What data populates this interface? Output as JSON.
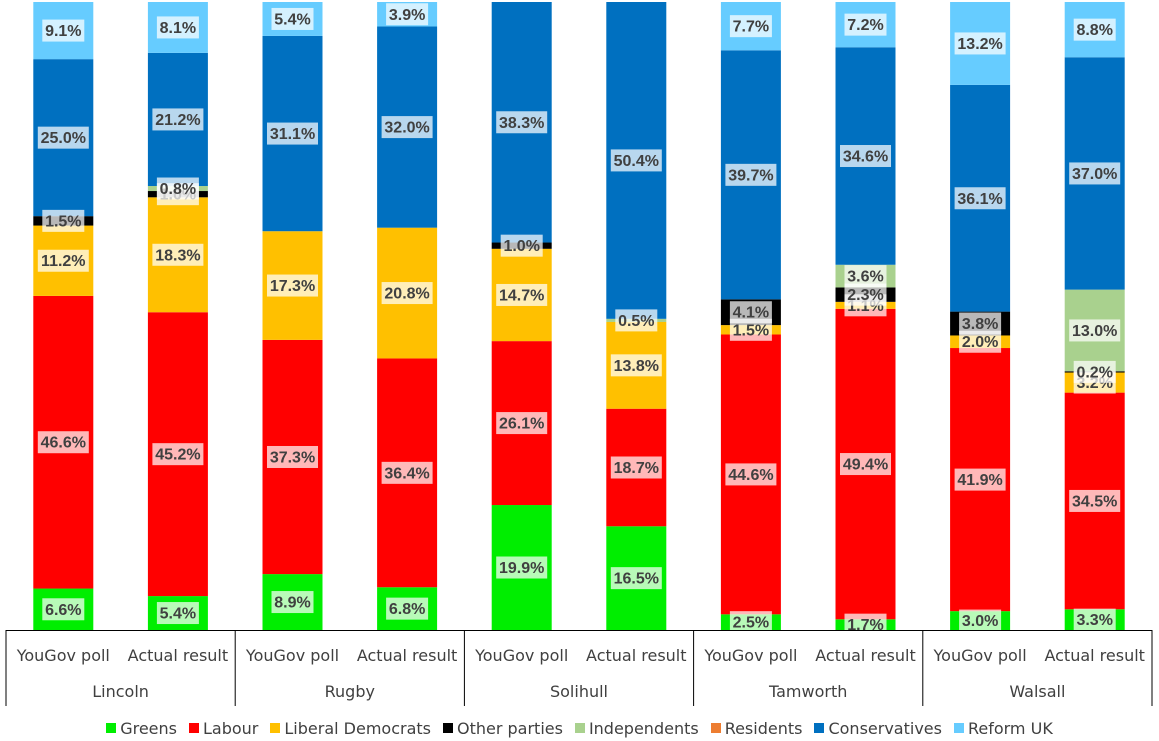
{
  "chart_data": {
    "type": "bar",
    "stacked": true,
    "percent_stacked": true,
    "bar_labels": [
      "YouGov poll",
      "Actual result"
    ],
    "groups": [
      "Lincoln",
      "Rugby",
      "Solihull",
      "Tamworth",
      "Walsall"
    ],
    "categories": [
      "YouGov poll",
      "Actual result",
      "YouGov poll",
      "Actual result",
      "YouGov poll",
      "Actual result",
      "YouGov poll",
      "Actual result",
      "YouGov poll",
      "Actual result"
    ],
    "series": [
      {
        "name": "Greens",
        "color": "#00ee00",
        "values": [
          6.6,
          5.4,
          8.9,
          6.8,
          19.9,
          16.5,
          2.5,
          1.7,
          3.0,
          3.3
        ]
      },
      {
        "name": "Labour",
        "color": "#ff0000",
        "values": [
          46.6,
          45.2,
          37.3,
          36.4,
          26.1,
          18.7,
          44.6,
          49.4,
          41.9,
          34.5
        ]
      },
      {
        "name": "Liberal Democrats",
        "color": "#ffc000",
        "values": [
          11.2,
          18.3,
          17.3,
          20.8,
          14.7,
          13.8,
          1.5,
          1.1,
          2.0,
          3.2
        ]
      },
      {
        "name": "Other parties",
        "color": "#000000",
        "values": [
          1.5,
          1.0,
          0,
          0,
          1.0,
          0,
          4.1,
          2.3,
          3.8,
          0.2
        ]
      },
      {
        "name": "Independents",
        "color": "#a9d18e",
        "values": [
          0,
          0.8,
          0,
          0,
          0,
          0.5,
          0,
          3.6,
          0,
          13.0
        ]
      },
      {
        "name": "Residents",
        "color": "#ed7d31",
        "values": [
          0,
          0,
          0,
          0,
          0,
          0,
          0,
          0,
          0,
          0
        ]
      },
      {
        "name": "Conservatives",
        "color": "#0070c0",
        "values": [
          25.0,
          21.2,
          31.1,
          32.0,
          38.3,
          50.4,
          39.7,
          34.6,
          36.1,
          37.0
        ]
      },
      {
        "name": "Reform UK",
        "color": "#66ccff",
        "values": [
          9.1,
          8.1,
          5.4,
          3.9,
          0,
          0,
          7.7,
          7.2,
          13.2,
          8.8
        ]
      }
    ],
    "data_labels": [
      [
        "6.6%",
        "46.6%",
        "11.2%",
        "1.5%",
        "",
        "",
        "25.0%",
        "9.1%"
      ],
      [
        "5.4%",
        "45.2%",
        "18.3%",
        "1.0%",
        "0.8%",
        "",
        "21.2%",
        "8.1%"
      ],
      [
        "8.9%",
        "37.3%",
        "17.3%",
        "",
        "",
        "",
        "31.1%",
        "5.4%"
      ],
      [
        "6.8%",
        "36.4%",
        "20.8%",
        "",
        "",
        "",
        "32.0%",
        "3.9%"
      ],
      [
        "19.9%",
        "26.1%",
        "14.7%",
        "1.0%",
        "",
        "",
        "38.3%",
        ""
      ],
      [
        "16.5%",
        "18.7%",
        "13.8%",
        "",
        "0.5%",
        "",
        "50.4%",
        ""
      ],
      [
        "2.5%",
        "44.6%",
        "1.5%",
        "4.1%",
        "",
        "",
        "39.7%",
        "7.7%"
      ],
      [
        "1.7%",
        "49.4%",
        "1.1%",
        "2.3%",
        "3.6%",
        "",
        "34.6%",
        "7.2%"
      ],
      [
        "3.0%",
        "41.9%",
        "2.0%",
        "3.8%",
        "",
        "",
        "36.1%",
        "13.2%"
      ],
      [
        "3.3%",
        "34.5%",
        "3.2%",
        "0.2%",
        "13.0%",
        "",
        "37.0%",
        "8.8%"
      ]
    ],
    "title": "",
    "xlabel": "",
    "ylabel": "",
    "ylim": [
      0,
      100
    ],
    "grid": false,
    "legend_position": "bottom"
  }
}
